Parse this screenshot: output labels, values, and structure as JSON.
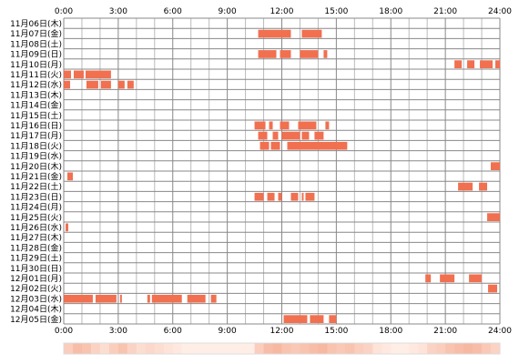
{
  "chart_data": {
    "type": "heatmap",
    "title": "",
    "xlabel": "",
    "ylabel": "",
    "x_range_hours": [
      0,
      24
    ],
    "x_ticks": [
      "0:00",
      "3:00",
      "6:00",
      "9:00",
      "12:00",
      "15:00",
      "18:00",
      "21:00",
      "24:00"
    ],
    "colors": {
      "block": "#f07050",
      "grid": "#888888",
      "minor_grid": "#bbbbbb",
      "strip_low": "#fff3ec",
      "strip_high": "#f7b8a2"
    },
    "rows": [
      {
        "date": "11月06日(木)",
        "blocks": []
      },
      {
        "date": "11月07日(金)",
        "blocks": [
          [
            10.7,
            12.5
          ],
          [
            13.1,
            14.2
          ]
        ]
      },
      {
        "date": "11月08日(土)",
        "blocks": []
      },
      {
        "date": "11月09日(日)",
        "blocks": [
          [
            10.7,
            11.7
          ],
          [
            11.9,
            12.5
          ],
          [
            13.0,
            14.0
          ],
          [
            14.3,
            14.5
          ]
        ]
      },
      {
        "date": "11月10日(月)",
        "blocks": [
          [
            21.5,
            21.9
          ],
          [
            22.2,
            22.6
          ],
          [
            22.9,
            23.6
          ],
          [
            23.75,
            24.0
          ]
        ]
      },
      {
        "date": "11月11日(火)",
        "blocks": [
          [
            0.0,
            0.4
          ],
          [
            0.55,
            1.1
          ],
          [
            1.2,
            2.6
          ]
        ]
      },
      {
        "date": "11月12日(水)",
        "blocks": [
          [
            0.0,
            0.35
          ],
          [
            1.25,
            1.9
          ],
          [
            2.05,
            2.6
          ],
          [
            3.0,
            3.35
          ],
          [
            3.5,
            3.85
          ]
        ]
      },
      {
        "date": "11月13日(木)",
        "blocks": []
      },
      {
        "date": "11月14日(金)",
        "blocks": []
      },
      {
        "date": "11月15日(土)",
        "blocks": []
      },
      {
        "date": "11月16日(日)",
        "blocks": [
          [
            10.5,
            11.1
          ],
          [
            11.3,
            11.5
          ],
          [
            11.9,
            12.4
          ],
          [
            12.9,
            13.9
          ],
          [
            14.4,
            14.6
          ]
        ]
      },
      {
        "date": "11月17日(月)",
        "blocks": [
          [
            10.7,
            11.2
          ],
          [
            11.5,
            11.8
          ],
          [
            12.0,
            13.0
          ],
          [
            13.1,
            13.5
          ],
          [
            13.8,
            14.3
          ]
        ]
      },
      {
        "date": "11月18日(火)",
        "blocks": [
          [
            10.8,
            11.3
          ],
          [
            11.4,
            11.9
          ],
          [
            12.3,
            15.6
          ]
        ]
      },
      {
        "date": "11月19日(水)",
        "blocks": []
      },
      {
        "date": "11月20日(木)",
        "blocks": [
          [
            23.5,
            24.0
          ]
        ]
      },
      {
        "date": "11月21日(金)",
        "blocks": [
          [
            0.2,
            0.5
          ]
        ]
      },
      {
        "date": "11月22日(土)",
        "blocks": [
          [
            21.7,
            22.5
          ],
          [
            22.85,
            23.3
          ]
        ]
      },
      {
        "date": "11月23日(日)",
        "blocks": [
          [
            10.5,
            11.0
          ],
          [
            11.2,
            11.6
          ],
          [
            11.8,
            12.0
          ],
          [
            12.5,
            12.9
          ],
          [
            13.1,
            13.2
          ],
          [
            13.3,
            13.8
          ]
        ]
      },
      {
        "date": "11月24日(月)",
        "blocks": []
      },
      {
        "date": "11月25日(火)",
        "blocks": [
          [
            23.3,
            24.0
          ]
        ]
      },
      {
        "date": "11月26日(水)",
        "blocks": [
          [
            0.1,
            0.25
          ]
        ]
      },
      {
        "date": "11月27日(木)",
        "blocks": []
      },
      {
        "date": "11月28日(金)",
        "blocks": []
      },
      {
        "date": "11月29日(土)",
        "blocks": []
      },
      {
        "date": "11月30日(日)",
        "blocks": []
      },
      {
        "date": "12月01日(月)",
        "blocks": [
          [
            19.9,
            20.2
          ],
          [
            20.7,
            21.5
          ],
          [
            22.3,
            23.0
          ]
        ]
      },
      {
        "date": "12月02日(火)",
        "blocks": [
          [
            23.35,
            23.85
          ]
        ]
      },
      {
        "date": "12月03日(水)",
        "blocks": [
          [
            0.0,
            1.6
          ],
          [
            1.75,
            2.9
          ],
          [
            3.1,
            3.2
          ],
          [
            4.6,
            4.75
          ],
          [
            4.85,
            6.5
          ],
          [
            6.8,
            7.8
          ],
          [
            8.1,
            8.4
          ]
        ]
      },
      {
        "date": "12月04日(木)",
        "blocks": []
      },
      {
        "date": "12月05日(金)",
        "blocks": [
          [
            12.1,
            13.4
          ],
          [
            13.55,
            14.3
          ],
          [
            14.6,
            15.0
          ]
        ]
      }
    ],
    "activity_strip": [
      0.35,
      0.5,
      0.45,
      0.3,
      0.2,
      0.35,
      0.45,
      0.3,
      0.2,
      0.25,
      0.2,
      0.15,
      0.1,
      0.05,
      0.05,
      0.05,
      0.05,
      0.05,
      0.05,
      0.05,
      0.05,
      0.35,
      0.5,
      0.55,
      0.45,
      0.4,
      0.45,
      0.5,
      0.55,
      0.45,
      0.4,
      0.45,
      0.35,
      0.3,
      0.15,
      0.1,
      0.05,
      0.05,
      0.1,
      0.15,
      0.3,
      0.35,
      0.45,
      0.5,
      0.55,
      0.5,
      0.4,
      0.3
    ]
  }
}
